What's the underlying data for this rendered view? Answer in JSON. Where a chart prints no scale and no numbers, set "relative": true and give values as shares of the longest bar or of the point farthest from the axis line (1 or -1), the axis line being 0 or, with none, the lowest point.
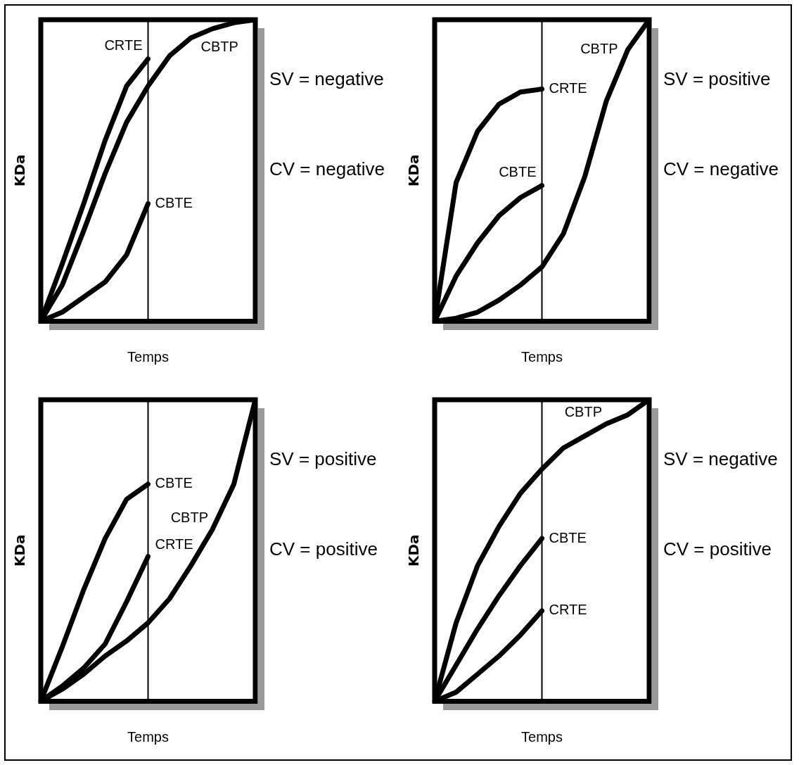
{
  "chart_data": [
    {
      "type": "line",
      "relative": true,
      "xlabel": "Temps",
      "ylabel": "KDa",
      "categories": [
        null,
        null,
        null,
        null,
        null,
        null,
        null,
        null,
        null,
        null,
        null
      ],
      "legend": false,
      "annotations": [
        "SV = negative",
        "CV = negative"
      ],
      "ref_lines": [
        {
          "axis": "x",
          "color": "#000000"
        }
      ],
      "series": [
        {
          "name": "CRTE",
          "color": "#000000",
          "values": [
            0,
            0.19,
            0.39,
            0.6,
            0.78,
            0.87,
            null,
            null,
            null,
            null,
            null
          ]
        },
        {
          "name": "CBTP",
          "color": "#000000",
          "values": [
            0,
            0.12,
            0.3,
            0.49,
            0.66,
            0.78,
            0.88,
            0.94,
            0.97,
            0.99,
            1
          ]
        },
        {
          "name": "CBTE",
          "color": "#000000",
          "values": [
            0,
            0.03,
            0.08,
            0.13,
            0.22,
            0.39,
            null,
            null,
            null,
            null,
            null
          ]
        }
      ]
    },
    {
      "type": "line",
      "relative": true,
      "xlabel": "Temps",
      "ylabel": "KDa",
      "categories": [
        null,
        null,
        null,
        null,
        null,
        null,
        null,
        null,
        null,
        null,
        null
      ],
      "legend": false,
      "annotations": [
        "SV = positive",
        "CV = negative"
      ],
      "ref_lines": [
        {
          "axis": "x",
          "color": "#000000"
        }
      ],
      "series": [
        {
          "name": "CRTE",
          "color": "#000000",
          "values": [
            0,
            0.46,
            0.63,
            0.72,
            0.76,
            0.77,
            null,
            null,
            null,
            null,
            null
          ]
        },
        {
          "name": "CBTE",
          "color": "#000000",
          "values": [
            0,
            0.15,
            0.26,
            0.35,
            0.41,
            0.45,
            null,
            null,
            null,
            null,
            null
          ]
        },
        {
          "name": "CBTP",
          "color": "#000000",
          "values": [
            0,
            0.01,
            0.03,
            0.07,
            0.12,
            0.18,
            0.29,
            0.48,
            0.73,
            0.9,
            1
          ]
        }
      ]
    },
    {
      "type": "line",
      "relative": true,
      "xlabel": "Temps",
      "ylabel": "KDa",
      "categories": [
        null,
        null,
        null,
        null,
        null,
        null,
        null,
        null,
        null,
        null,
        null
      ],
      "legend": false,
      "annotations": [
        "SV = positive",
        "CV = positive"
      ],
      "ref_lines": [
        {
          "axis": "x",
          "color": "#000000"
        }
      ],
      "series": [
        {
          "name": "CBTE",
          "color": "#000000",
          "values": [
            0,
            0.18,
            0.37,
            0.54,
            0.67,
            0.72,
            null,
            null,
            null,
            null,
            null
          ]
        },
        {
          "name": "CRTE",
          "color": "#000000",
          "values": [
            0,
            0.05,
            0.11,
            0.19,
            0.33,
            0.48,
            null,
            null,
            null,
            null,
            null
          ]
        },
        {
          "name": "CBTP",
          "color": "#000000",
          "values": [
            0,
            0.04,
            0.09,
            0.15,
            0.2,
            0.26,
            0.34,
            0.45,
            0.57,
            0.72,
            1
          ]
        }
      ]
    },
    {
      "type": "line",
      "relative": true,
      "xlabel": "Temps",
      "ylabel": "KDa",
      "categories": [
        null,
        null,
        null,
        null,
        null,
        null,
        null,
        null,
        null,
        null,
        null
      ],
      "legend": false,
      "annotations": [
        "SV = negative",
        "CV = positive"
      ],
      "ref_lines": [
        {
          "axis": "x",
          "color": "#000000"
        }
      ],
      "series": [
        {
          "name": "CBTP",
          "color": "#000000",
          "values": [
            0,
            0.26,
            0.45,
            0.58,
            0.69,
            0.77,
            0.84,
            0.88,
            0.92,
            0.95,
            1
          ]
        },
        {
          "name": "CBTE",
          "color": "#000000",
          "values": [
            0,
            0.12,
            0.24,
            0.35,
            0.45,
            0.54,
            null,
            null,
            null,
            null,
            null
          ]
        },
        {
          "name": "CRTE",
          "color": "#000000",
          "values": [
            0,
            0.03,
            0.09,
            0.15,
            0.22,
            0.3,
            null,
            null,
            null,
            null,
            null
          ]
        }
      ]
    }
  ]
}
